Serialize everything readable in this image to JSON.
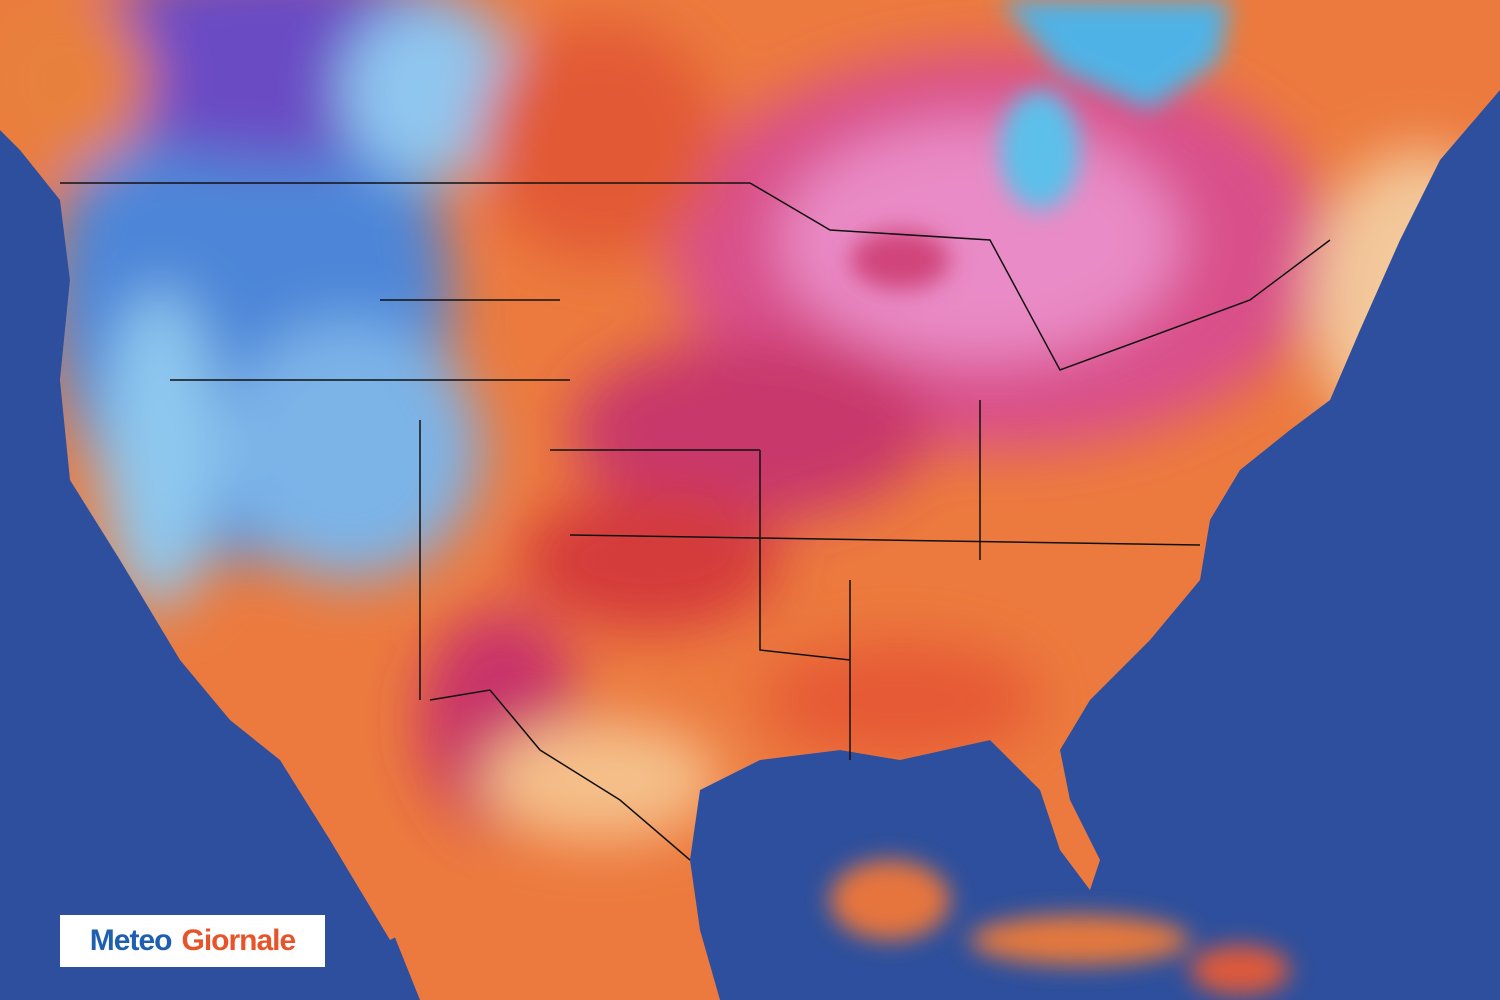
{
  "logo": {
    "word1": "Meteo",
    "word2": "Giornale"
  }
}
